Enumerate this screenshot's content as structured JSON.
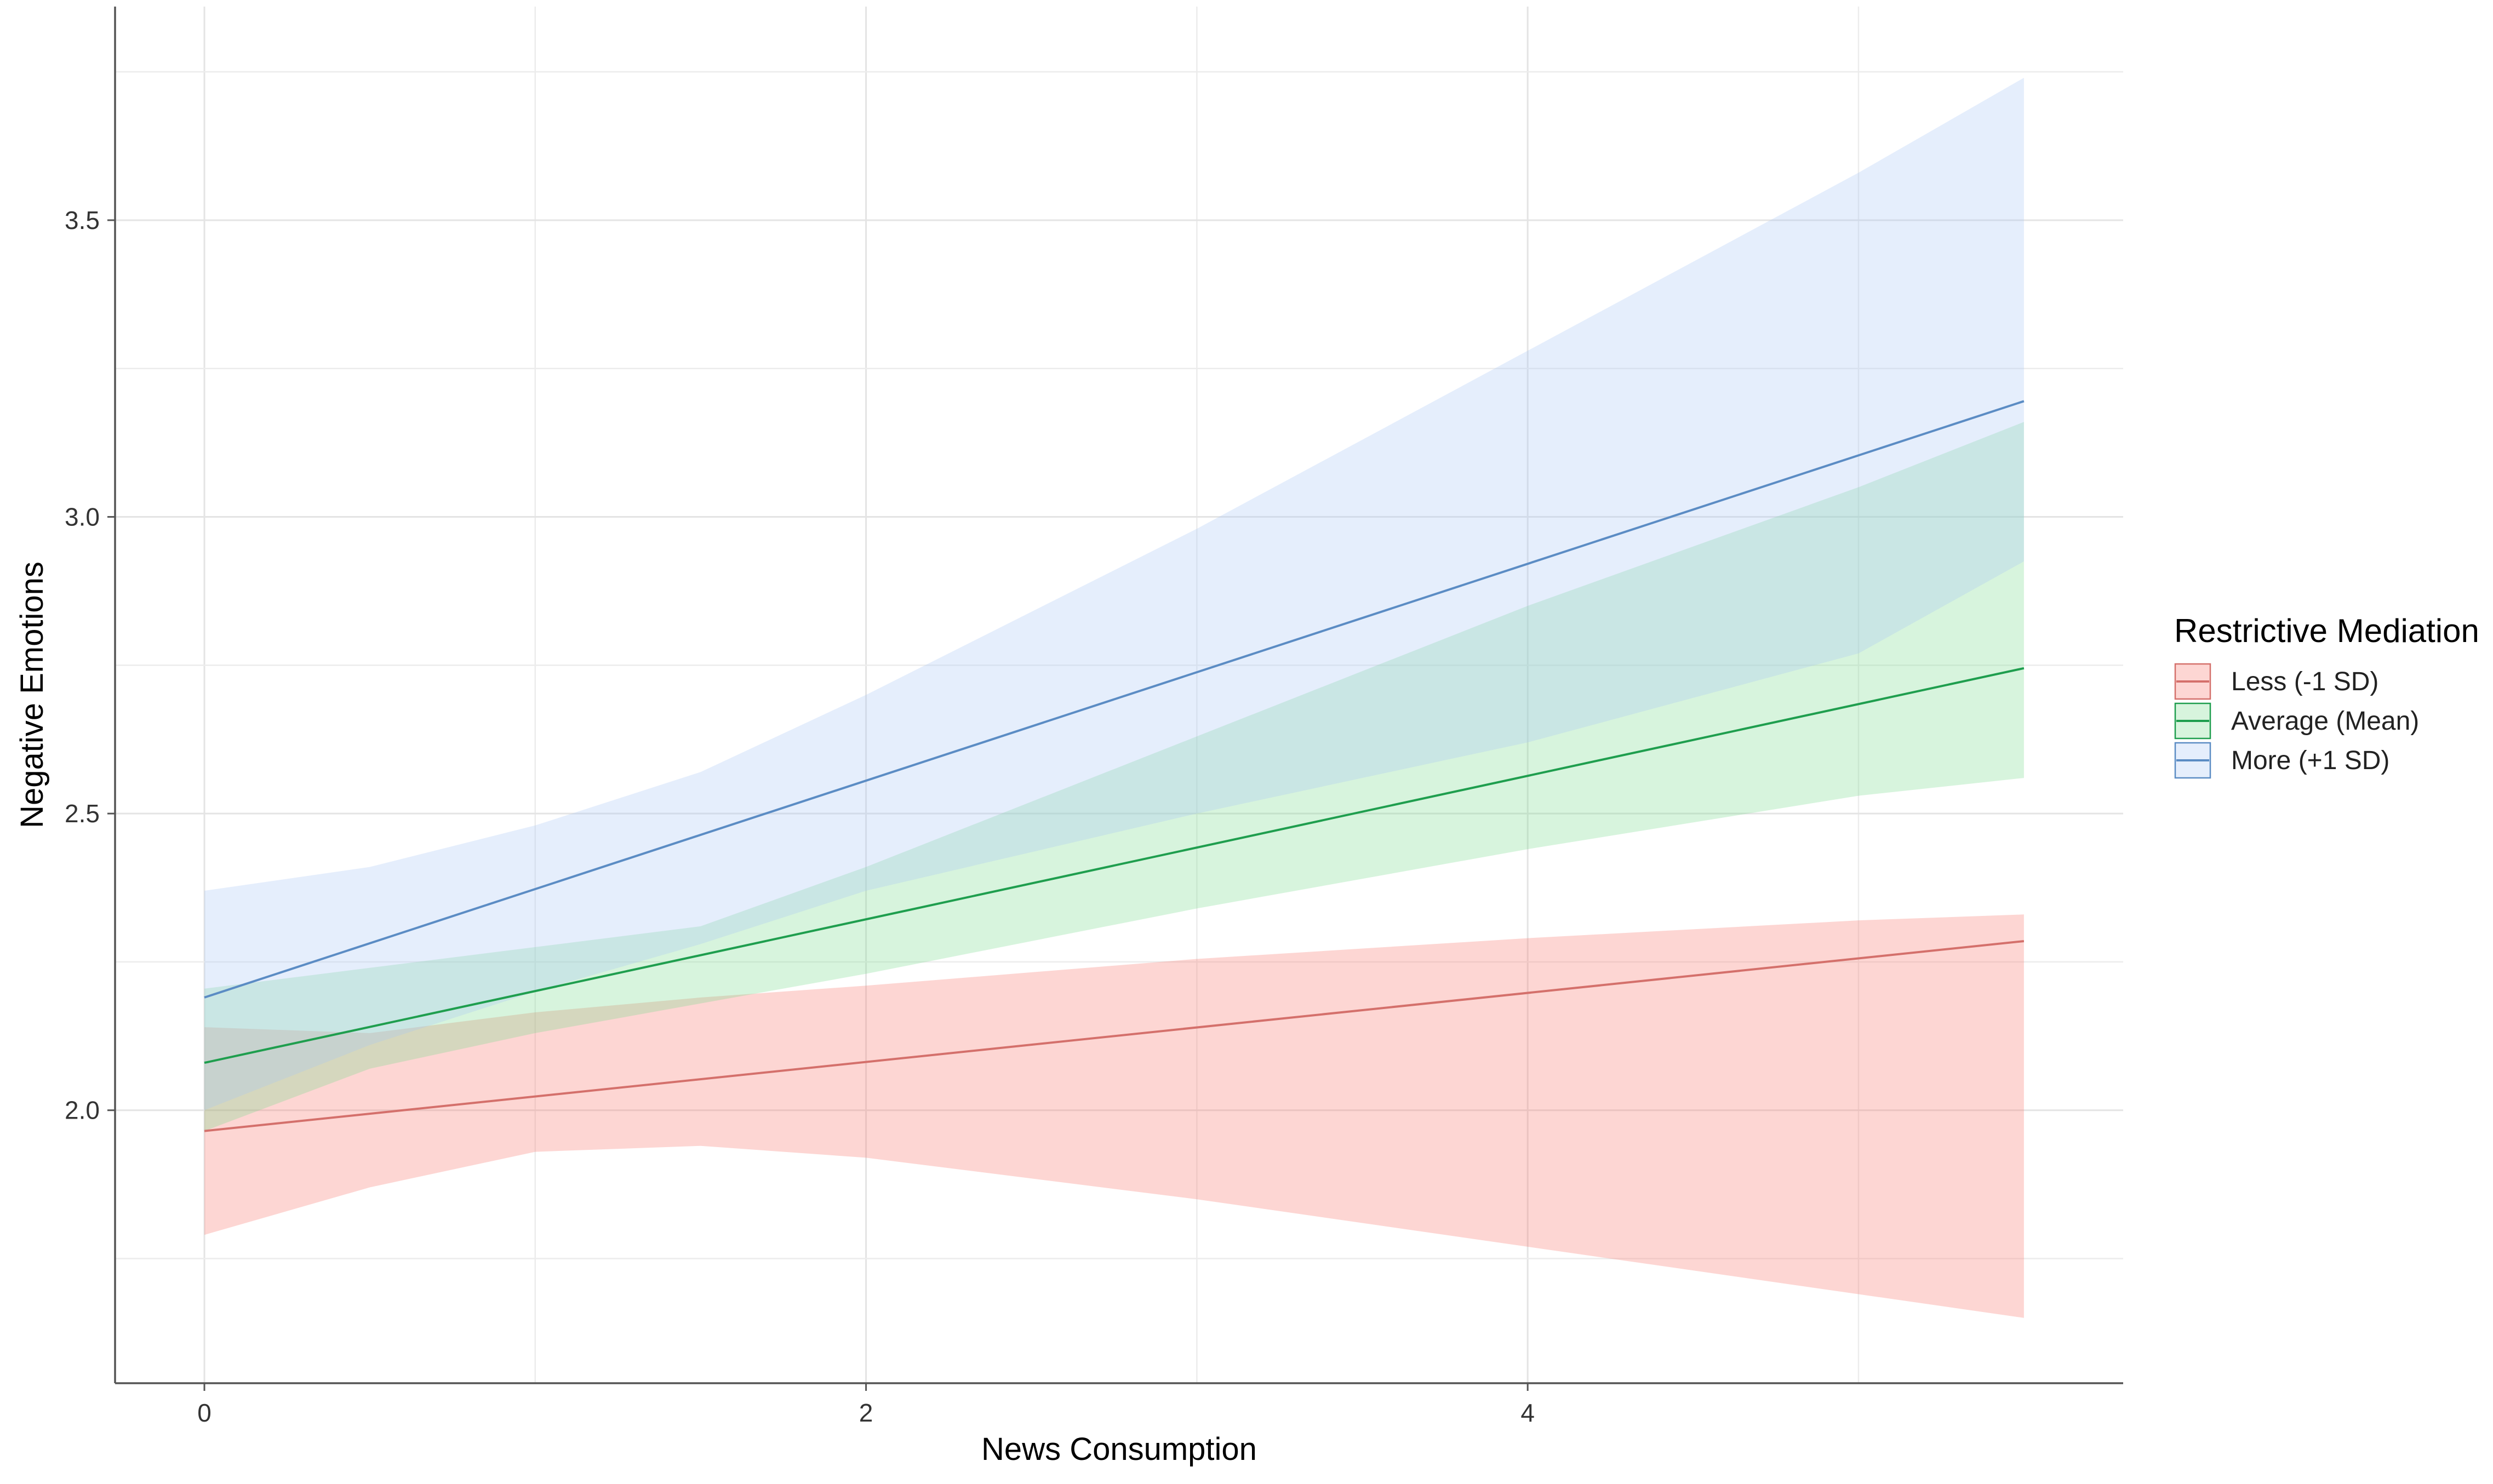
{
  "chart_data": {
    "type": "line",
    "xlabel": "News Consumption",
    "ylabel": "Negative Emotions",
    "xlim": [
      -0.27,
      5.8
    ],
    "ylim": [
      1.54,
      3.86
    ],
    "x_ticks": [
      0,
      2,
      4
    ],
    "x_tick_labels": [
      "0",
      "2",
      "4"
    ],
    "y_ticks": [
      2.0,
      2.5,
      3.0,
      3.5
    ],
    "y_tick_labels": [
      "2.0",
      "2.5",
      "3.0",
      "3.5"
    ],
    "x_minor_grid": [
      1,
      3,
      5
    ],
    "y_minor_grid": [
      1.75,
      2.25,
      2.75,
      3.25,
      3.75
    ],
    "grid": true,
    "legend": {
      "title": "Restrictive Mediation",
      "position": "right"
    },
    "series": [
      {
        "name": "Less (-1 SD)",
        "color": "#d4706b",
        "fill": "#f8766d",
        "x": [
          0,
          5.5
        ],
        "y": [
          1.965,
          2.285
        ],
        "band_x": [
          0,
          0.5,
          1,
          1.5,
          2,
          3,
          4,
          5,
          5.5
        ],
        "band_lower": [
          1.79,
          1.87,
          1.93,
          1.94,
          1.92,
          1.85,
          1.77,
          1.69,
          1.65
        ],
        "band_upper": [
          2.14,
          2.13,
          2.165,
          2.19,
          2.21,
          2.255,
          2.29,
          2.32,
          2.33
        ]
      },
      {
        "name": "Average (Mean)",
        "color": "#1f9e4e",
        "fill": "#7cd990",
        "x": [
          0,
          5.5
        ],
        "y": [
          2.08,
          2.745
        ],
        "band_x": [
          0,
          0.5,
          1,
          1.5,
          2,
          3,
          4,
          5,
          5.5
        ],
        "band_lower": [
          1.965,
          2.07,
          2.13,
          2.18,
          2.23,
          2.34,
          2.44,
          2.53,
          2.56
        ],
        "band_upper": [
          2.205,
          2.24,
          2.275,
          2.31,
          2.41,
          2.63,
          2.85,
          3.05,
          3.16
        ]
      },
      {
        "name": "More (+1 SD)",
        "color": "#5b8cc4",
        "fill": "#a9c7f5",
        "x": [
          0,
          5.5
        ],
        "y": [
          2.19,
          3.195
        ],
        "band_x": [
          0,
          0.5,
          1,
          1.5,
          2,
          3,
          4,
          5,
          5.5
        ],
        "band_lower": [
          2.0,
          2.11,
          2.2,
          2.28,
          2.37,
          2.5,
          2.62,
          2.77,
          2.925
        ],
        "band_upper": [
          2.37,
          2.41,
          2.48,
          2.57,
          2.7,
          2.98,
          3.28,
          3.58,
          3.74
        ]
      }
    ]
  }
}
